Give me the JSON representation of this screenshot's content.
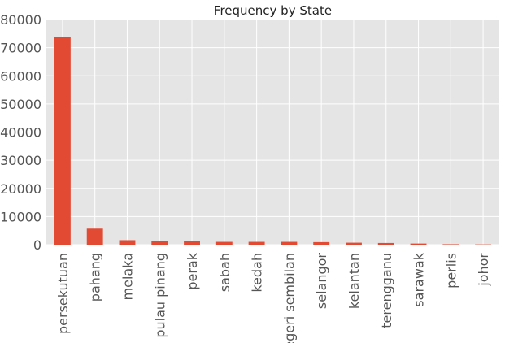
{
  "chart_data": {
    "type": "bar",
    "title": "Frequency by State",
    "xlabel": "",
    "ylabel": "",
    "categories": [
      "persekutuan",
      "pahang",
      "melaka",
      "pulau pinang",
      "perak",
      "sabah",
      "kedah",
      "negeri sembilan",
      "selangor",
      "kelantan",
      "terengganu",
      "sarawak",
      "perlis",
      "johor"
    ],
    "values": [
      73800,
      5700,
      1600,
      1300,
      1200,
      1000,
      1000,
      1000,
      900,
      700,
      600,
      400,
      150,
      100
    ],
    "ylim": [
      0,
      80000
    ],
    "yticks": [
      0,
      10000,
      20000,
      30000,
      40000,
      50000,
      60000,
      70000,
      80000
    ],
    "grid": true,
    "colors": {
      "bar": "#e24a33",
      "background": "#e5e5e5",
      "grid": "#ffffff",
      "text": "#555555"
    }
  }
}
